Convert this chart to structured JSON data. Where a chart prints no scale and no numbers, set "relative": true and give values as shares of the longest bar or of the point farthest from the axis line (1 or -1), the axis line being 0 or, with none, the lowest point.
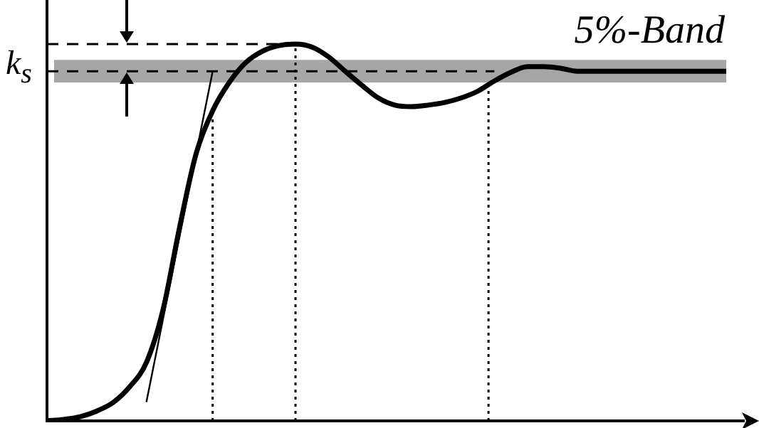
{
  "chart_data": {
    "type": "line",
    "relative": true,
    "legend": false,
    "marker": "none",
    "categories": [
      null,
      null,
      null,
      null,
      null,
      null,
      null,
      null,
      null,
      null,
      null,
      null,
      null,
      null,
      null,
      null,
      null,
      null,
      null,
      null,
      null,
      null,
      null,
      null,
      null,
      null,
      null,
      null,
      null,
      null,
      null,
      null,
      null,
      null,
      null,
      null,
      null,
      null,
      null,
      null,
      null,
      null
    ],
    "series": [
      {
        "color": "#000000",
        "values": [
          0,
          0.004,
          0.011,
          0.026,
          0.049,
          0.091,
          0.155,
          0.294,
          0.513,
          0.709,
          0.823,
          0.898,
          0.951,
          0.981,
          0.996,
          1,
          0.992,
          0.966,
          0.928,
          0.891,
          0.857,
          0.838,
          0.834,
          0.838,
          0.845,
          0.857,
          0.875,
          0.902,
          0.925,
          0.94,
          0.94,
          0.936,
          0.928,
          0.928,
          0.928,
          0.928,
          0.928,
          0.928,
          0.928,
          0.928,
          0.928,
          0.928
        ]
      },
      {
        "color": "#000000",
        "values": [
          null,
          null,
          null,
          null,
          null,
          null,
          0.05,
          null,
          null,
          null,
          0.928,
          null,
          null,
          null,
          null,
          null,
          null,
          null,
          null,
          null,
          null,
          null,
          null,
          null,
          null,
          null,
          null,
          null,
          null,
          null,
          null,
          null,
          null,
          null,
          null,
          null,
          null,
          null,
          null,
          null,
          null,
          null
        ]
      }
    ],
    "ref_lines": [
      {
        "axis": "y",
        "value": 0.928,
        "label": "k$_{s}$",
        "line_style": "dashed"
      },
      {
        "axis": "y",
        "value": 1,
        "line_style": "dashed"
      }
    ],
    "bands": [
      {
        "axis": "y",
        "from": 0.898,
        "to": 0.958,
        "label": "5%-Band",
        "color": "#a6a6a6"
      }
    ]
  }
}
